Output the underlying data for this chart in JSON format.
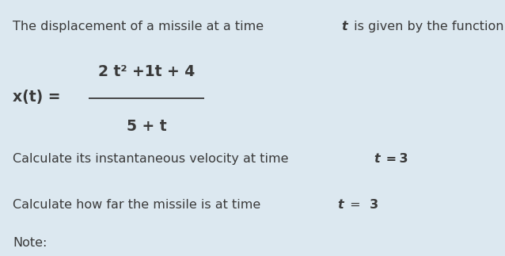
{
  "background_color": "#dce8f0",
  "title_normal": "The displacement of a missile at a time ",
  "title_bold_italic": "t",
  "title_suffix": " is given by the function:",
  "xt_label": "x(t) =",
  "numerator": "2 t² +1t + 4",
  "denominator": "5 + t",
  "line1_normal": "Calculate its instantaneous velocity at time ",
  "line1_bold_italic": "t",
  "line1_eq": " = 3",
  "line2_normal": "Calculate how far the missile is at time ",
  "line2_bold_italic": "t",
  "line2_eq": " = ",
  "line2_bold": "3",
  "note_text": "Note:",
  "font_size": 11.5,
  "font_size_formula": 13.5,
  "text_color": "#3a3a3a"
}
